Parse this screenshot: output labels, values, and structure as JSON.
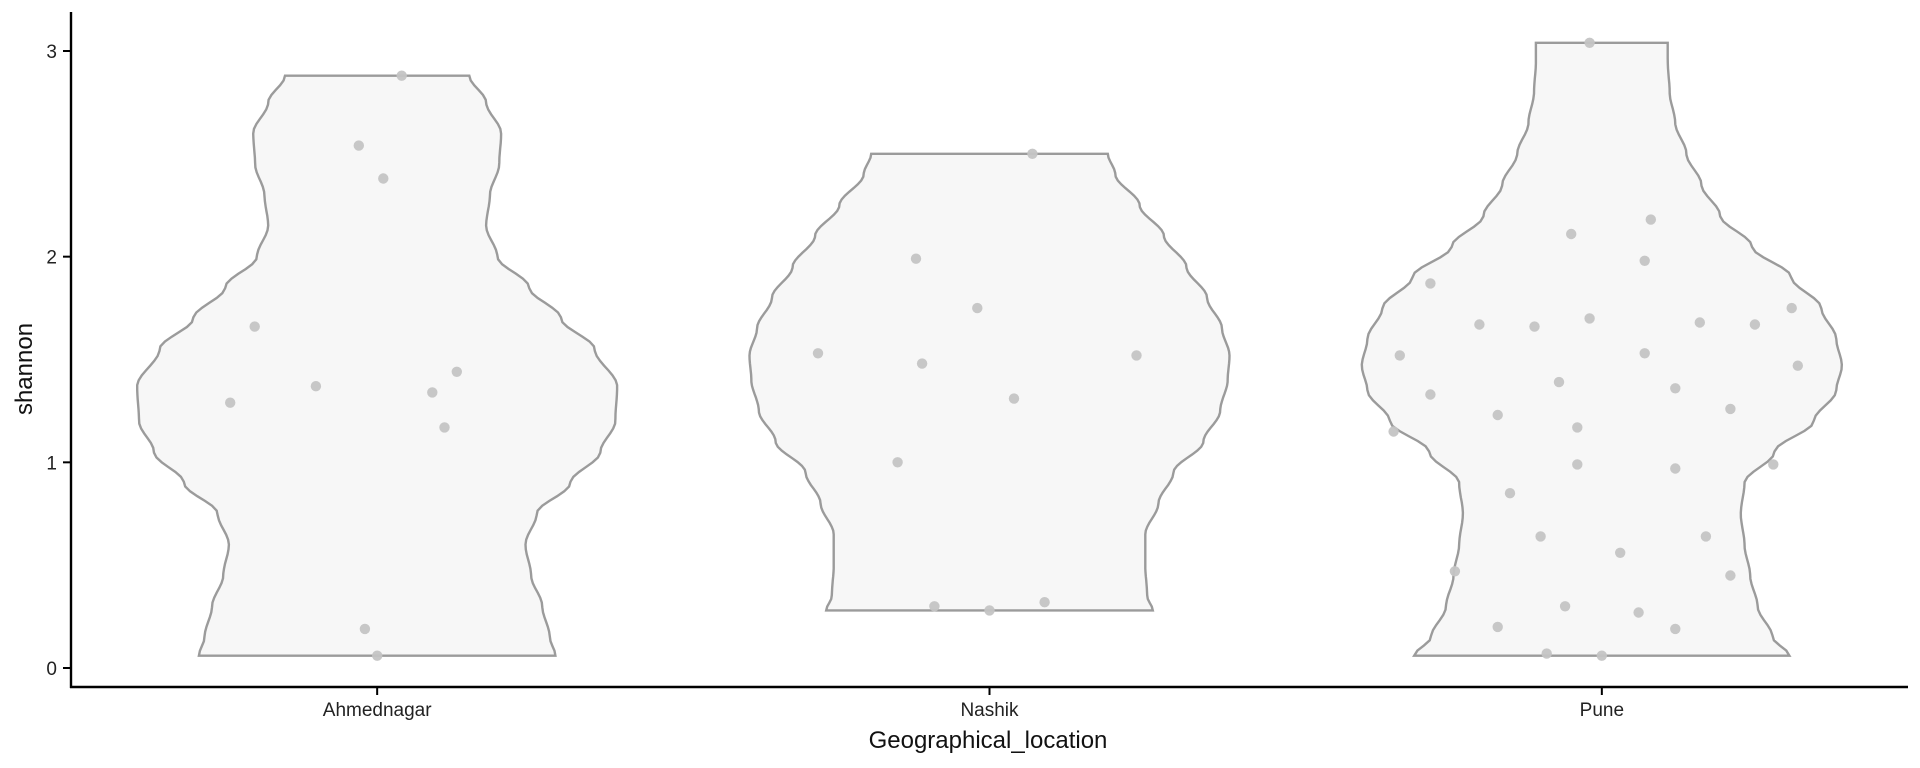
{
  "chart_data": {
    "type": "violin",
    "xlabel": "Geographical_location",
    "ylabel": "shannon",
    "ylim": [
      -0.1,
      3.2
    ],
    "yticks": [
      0,
      1,
      2,
      3
    ],
    "grid": false,
    "colors": {
      "fill": "#f7f7f7",
      "outline": "#9b9b9b",
      "points": "#c4c4c4",
      "axis": "#000000"
    },
    "groups": [
      {
        "name": "Ahmednagar",
        "min": 0.06,
        "max": 2.88,
        "density": [
          [
            0.06,
            0.33
          ],
          [
            0.15,
            0.36
          ],
          [
            0.3,
            0.4
          ],
          [
            0.45,
            0.46
          ],
          [
            0.6,
            0.49
          ],
          [
            0.75,
            0.43
          ],
          [
            0.9,
            0.25
          ],
          [
            1.05,
            0.09
          ],
          [
            1.2,
            0.01
          ],
          [
            1.37,
            0.0
          ],
          [
            1.55,
            0.12
          ],
          [
            1.7,
            0.3
          ],
          [
            1.85,
            0.47
          ],
          [
            2.0,
            0.64
          ],
          [
            2.15,
            0.7
          ],
          [
            2.3,
            0.68
          ],
          [
            2.45,
            0.63
          ],
          [
            2.6,
            0.62
          ],
          [
            2.75,
            0.7
          ],
          [
            2.88,
            0.79
          ]
        ],
        "points": [
          [
            -0.24,
            1.29
          ],
          [
            -0.2,
            1.66
          ],
          [
            0.13,
            1.44
          ],
          [
            -0.1,
            1.37
          ],
          [
            0.09,
            1.34
          ],
          [
            0.11,
            1.17
          ],
          [
            -0.03,
            2.54
          ],
          [
            0.01,
            2.38
          ],
          [
            0.04,
            2.88
          ],
          [
            -0.02,
            0.19
          ],
          [
            0.0,
            0.06
          ]
        ]
      },
      {
        "name": "Nashik",
        "min": 0.28,
        "max": 2.5,
        "density": [
          [
            0.28,
            0.41
          ],
          [
            0.35,
            0.44
          ],
          [
            0.5,
            0.45
          ],
          [
            0.65,
            0.45
          ],
          [
            0.8,
            0.38
          ],
          [
            0.95,
            0.3
          ],
          [
            1.1,
            0.14
          ],
          [
            1.25,
            0.05
          ],
          [
            1.4,
            0.01
          ],
          [
            1.52,
            0.0
          ],
          [
            1.65,
            0.04
          ],
          [
            1.8,
            0.12
          ],
          [
            1.95,
            0.23
          ],
          [
            2.1,
            0.35
          ],
          [
            2.25,
            0.48
          ],
          [
            2.4,
            0.61
          ],
          [
            2.5,
            0.65
          ]
        ],
        "points": [
          [
            -0.28,
            1.53
          ],
          [
            0.24,
            1.52
          ],
          [
            -0.02,
            1.75
          ],
          [
            -0.12,
            1.99
          ],
          [
            -0.11,
            1.48
          ],
          [
            0.04,
            1.31
          ],
          [
            -0.15,
            1.0
          ],
          [
            0.07,
            2.5
          ],
          [
            -0.09,
            0.3
          ],
          [
            0.0,
            0.28
          ],
          [
            0.09,
            0.32
          ]
        ]
      },
      {
        "name": "Pune",
        "min": 0.06,
        "max": 3.04,
        "density": [
          [
            0.06,
            0.28
          ],
          [
            0.15,
            0.37
          ],
          [
            0.3,
            0.45
          ],
          [
            0.45,
            0.49
          ],
          [
            0.6,
            0.52
          ],
          [
            0.75,
            0.54
          ],
          [
            0.9,
            0.52
          ],
          [
            1.05,
            0.36
          ],
          [
            1.2,
            0.15
          ],
          [
            1.35,
            0.03
          ],
          [
            1.47,
            0.0
          ],
          [
            1.6,
            0.03
          ],
          [
            1.75,
            0.11
          ],
          [
            1.9,
            0.27
          ],
          [
            2.05,
            0.48
          ],
          [
            2.2,
            0.65
          ],
          [
            2.35,
            0.75
          ],
          [
            2.5,
            0.83
          ],
          [
            2.65,
            0.89
          ],
          [
            2.8,
            0.92
          ],
          [
            2.95,
            0.93
          ],
          [
            3.04,
            0.93
          ]
        ],
        "points": [
          [
            -0.33,
            1.52
          ],
          [
            -0.34,
            1.15
          ],
          [
            -0.28,
            1.33
          ],
          [
            -0.28,
            1.87
          ],
          [
            -0.2,
            1.67
          ],
          [
            -0.11,
            1.66
          ],
          [
            -0.05,
            2.11
          ],
          [
            -0.02,
            1.7
          ],
          [
            -0.07,
            1.39
          ],
          [
            -0.17,
            1.23
          ],
          [
            0.07,
            1.98
          ],
          [
            0.08,
            2.18
          ],
          [
            0.07,
            1.53
          ],
          [
            0.12,
            1.36
          ],
          [
            0.16,
            1.68
          ],
          [
            0.25,
            1.67
          ],
          [
            0.31,
            1.75
          ],
          [
            0.32,
            1.47
          ],
          [
            0.21,
            1.26
          ],
          [
            -0.04,
            1.17
          ],
          [
            -0.04,
            0.99
          ],
          [
            0.12,
            0.97
          ],
          [
            0.28,
            0.99
          ],
          [
            -0.15,
            0.85
          ],
          [
            -0.1,
            0.64
          ],
          [
            0.03,
            0.56
          ],
          [
            0.17,
            0.64
          ],
          [
            -0.24,
            0.47
          ],
          [
            0.21,
            0.45
          ],
          [
            -0.17,
            0.2
          ],
          [
            -0.06,
            0.3
          ],
          [
            0.06,
            0.27
          ],
          [
            0.12,
            0.19
          ],
          [
            -0.09,
            0.07
          ],
          [
            0.0,
            0.06
          ],
          [
            -0.02,
            3.04
          ]
        ]
      }
    ]
  }
}
